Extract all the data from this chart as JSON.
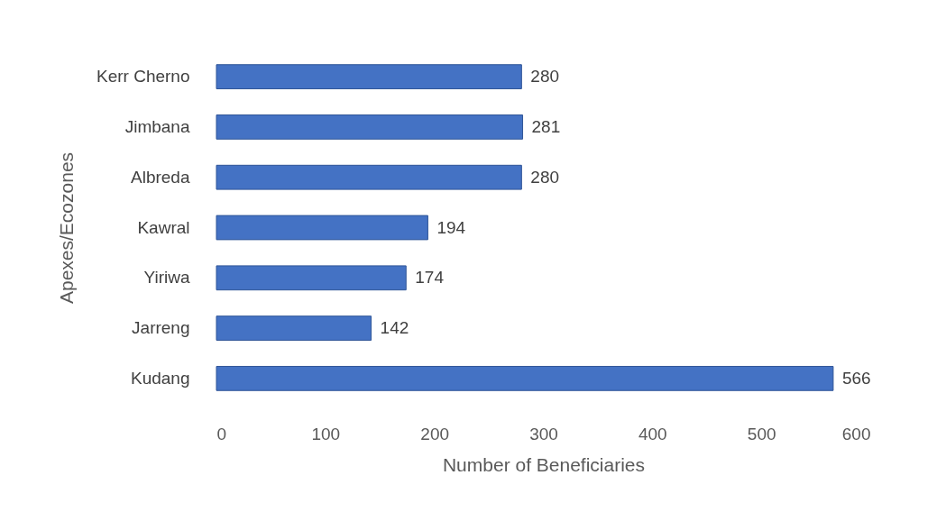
{
  "chart_data": {
    "type": "bar",
    "orientation": "horizontal",
    "xlabel": "Number of Beneficiaries",
    "ylabel": "Apexes/Ecozones",
    "categories": [
      "Kerr Cherno",
      "Jimbana",
      "Albreda",
      "Kawral",
      "Yiriwa",
      "Jarreng",
      "Kudang"
    ],
    "values": [
      280,
      281,
      280,
      194,
      174,
      142,
      566
    ],
    "color": "#4472c4",
    "xlim": [
      0,
      600
    ],
    "xticks": [
      0,
      100,
      200,
      300,
      400,
      500,
      600
    ],
    "grid": false,
    "data_labels": true
  }
}
